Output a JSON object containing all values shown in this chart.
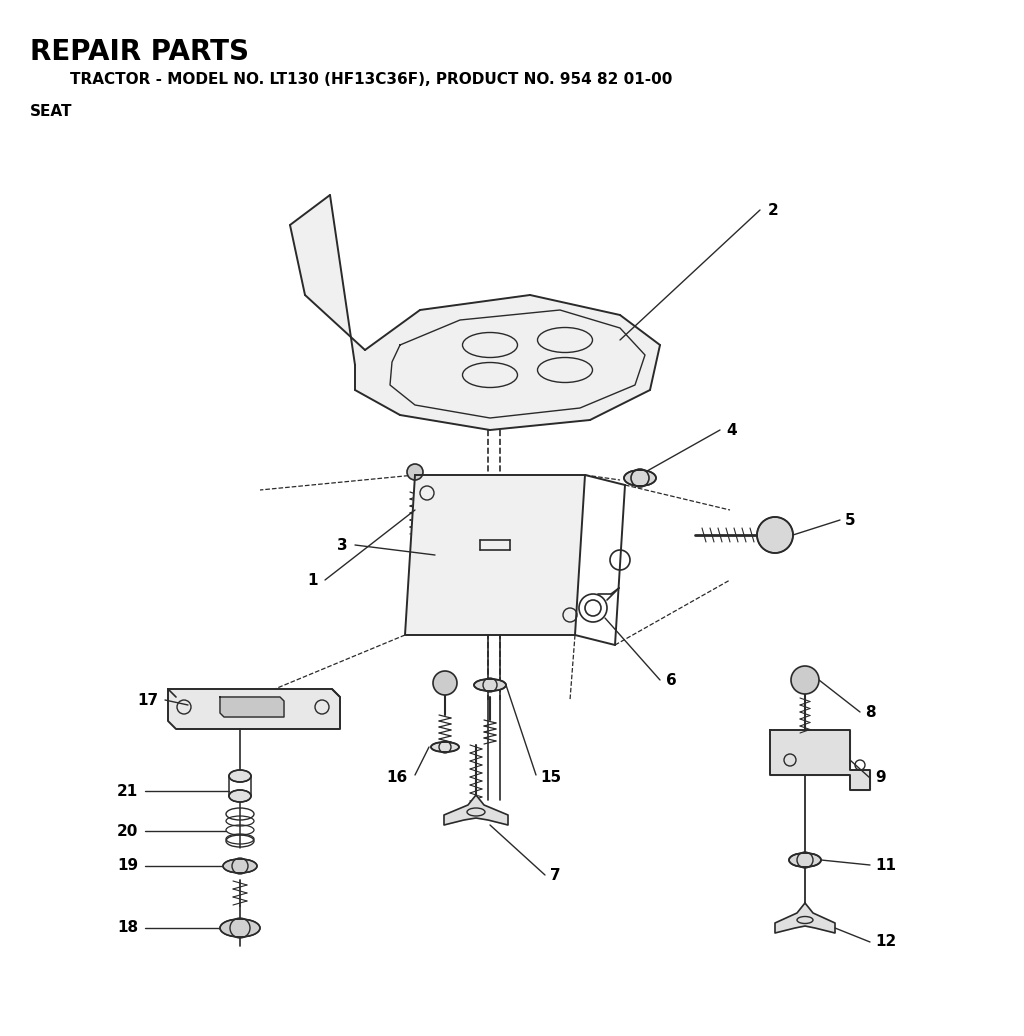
{
  "title": "REPAIR PARTS",
  "subtitle": "TRACTOR - MODEL NO. LT130 (HF13C36F), PRODUCT NO. 954 82 01-00",
  "section": "SEAT",
  "bg_color": "#ffffff",
  "text_color": "#000000",
  "line_color": "#2a2a2a"
}
